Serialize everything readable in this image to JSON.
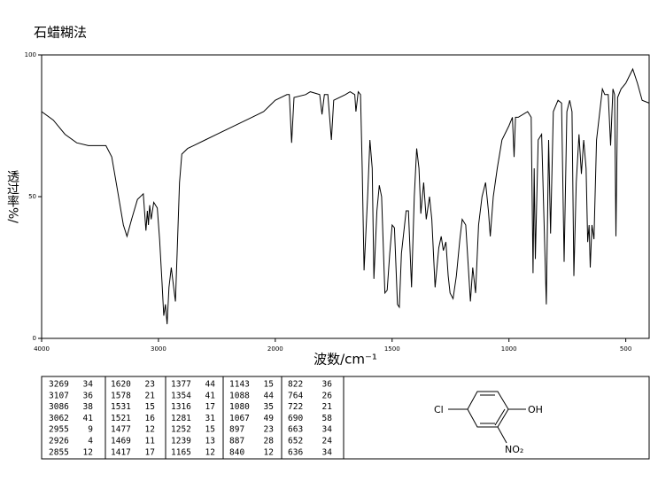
{
  "chart_data": {
    "type": "line",
    "title": "石蜡糊法",
    "x_label": "波数/cm⁻¹",
    "y_label": "透过率%/",
    "xlim": [
      4000,
      400
    ],
    "xticks": [
      4000,
      3000,
      2000,
      1500,
      1000,
      500
    ],
    "ylim": [
      0,
      100
    ],
    "yticks": [
      0,
      50,
      100
    ],
    "x": [
      4000,
      3900,
      3800,
      3700,
      3600,
      3500,
      3450,
      3400,
      3350,
      3300,
      3269,
      3230,
      3180,
      3130,
      3107,
      3095,
      3086,
      3075,
      3062,
      3040,
      3010,
      2990,
      2970,
      2955,
      2940,
      2926,
      2910,
      2890,
      2870,
      2855,
      2840,
      2820,
      2800,
      2750,
      2700,
      2600,
      2500,
      2400,
      2300,
      2200,
      2100,
      2050,
      2000,
      1950,
      1940,
      1930,
      1920,
      1870,
      1850,
      1810,
      1800,
      1790,
      1775,
      1760,
      1750,
      1700,
      1680,
      1660,
      1655,
      1645,
      1635,
      1628,
      1620,
      1605,
      1595,
      1585,
      1578,
      1565,
      1555,
      1545,
      1531,
      1521,
      1510,
      1500,
      1490,
      1477,
      1469,
      1460,
      1440,
      1430,
      1417,
      1405,
      1395,
      1385,
      1377,
      1365,
      1354,
      1340,
      1330,
      1316,
      1300,
      1290,
      1281,
      1270,
      1260,
      1252,
      1239,
      1225,
      1210,
      1200,
      1185,
      1165,
      1155,
      1143,
      1130,
      1115,
      1100,
      1088,
      1080,
      1067,
      1050,
      1030,
      1000,
      985,
      978,
      972,
      960,
      920,
      905,
      897,
      892,
      887,
      875,
      860,
      840,
      830,
      822,
      810,
      790,
      775,
      764,
      752,
      740,
      730,
      722,
      712,
      700,
      690,
      680,
      670,
      663,
      657,
      652,
      645,
      636,
      625,
      600,
      590,
      575,
      565,
      555,
      548,
      542,
      535,
      520,
      500,
      470,
      450,
      430,
      400
    ],
    "series": [
      {
        "color": "#000000",
        "values": [
          80,
          77,
          72,
          69,
          68,
          68,
          68,
          64,
          52,
          40,
          36,
          42,
          49,
          51,
          38,
          45,
          40,
          47,
          42,
          48,
          46,
          35,
          20,
          8,
          12,
          5,
          18,
          25,
          18,
          13,
          30,
          55,
          65,
          67,
          68,
          70,
          72,
          74,
          76,
          78,
          80,
          82,
          84,
          86,
          86,
          69,
          85,
          86,
          87,
          86,
          79,
          86,
          86,
          70,
          84,
          86,
          87,
          86,
          80,
          87,
          86,
          60,
          24,
          50,
          70,
          60,
          21,
          45,
          54,
          50,
          16,
          17,
          30,
          40,
          39,
          12,
          11,
          30,
          45,
          45,
          18,
          50,
          67,
          60,
          44,
          55,
          42,
          50,
          42,
          18,
          32,
          36,
          31,
          34,
          22,
          16,
          14,
          22,
          35,
          42,
          40,
          13,
          25,
          16,
          40,
          50,
          55,
          45,
          36,
          50,
          60,
          70,
          75,
          78,
          64,
          78,
          78,
          80,
          78,
          23,
          60,
          28,
          70,
          72,
          12,
          70,
          37,
          80,
          84,
          83,
          27,
          80,
          84,
          80,
          22,
          55,
          72,
          58,
          70,
          60,
          34,
          40,
          25,
          40,
          35,
          70,
          88,
          86,
          86,
          68,
          88,
          86,
          36,
          85,
          88,
          90,
          95,
          90,
          84,
          83
        ]
      }
    ]
  },
  "peak_table": [
    [
      [
        3269,
        34
      ],
      [
        3107,
        36
      ],
      [
        3086,
        38
      ],
      [
        3062,
        41
      ],
      [
        2955,
        9
      ],
      [
        2926,
        4
      ],
      [
        2855,
        12
      ]
    ],
    [
      [
        1620,
        23
      ],
      [
        1578,
        21
      ],
      [
        1531,
        15
      ],
      [
        1521,
        16
      ],
      [
        1477,
        12
      ],
      [
        1469,
        11
      ],
      [
        1417,
        17
      ]
    ],
    [
      [
        1377,
        44
      ],
      [
        1354,
        41
      ],
      [
        1316,
        17
      ],
      [
        1281,
        31
      ],
      [
        1252,
        15
      ],
      [
        1239,
        13
      ],
      [
        1165,
        12
      ]
    ],
    [
      [
        1143,
        15
      ],
      [
        1088,
        44
      ],
      [
        1080,
        35
      ],
      [
        1067,
        49
      ],
      [
        897,
        23
      ],
      [
        887,
        28
      ],
      [
        840,
        12
      ]
    ],
    [
      [
        822,
        36
      ],
      [
        764,
        26
      ],
      [
        722,
        21
      ],
      [
        690,
        58
      ],
      [
        663,
        34
      ],
      [
        652,
        24
      ],
      [
        636,
        34
      ]
    ]
  ],
  "structure": {
    "left_group": "Cl",
    "right_group": "OH",
    "bottom_group": "NO₂"
  }
}
